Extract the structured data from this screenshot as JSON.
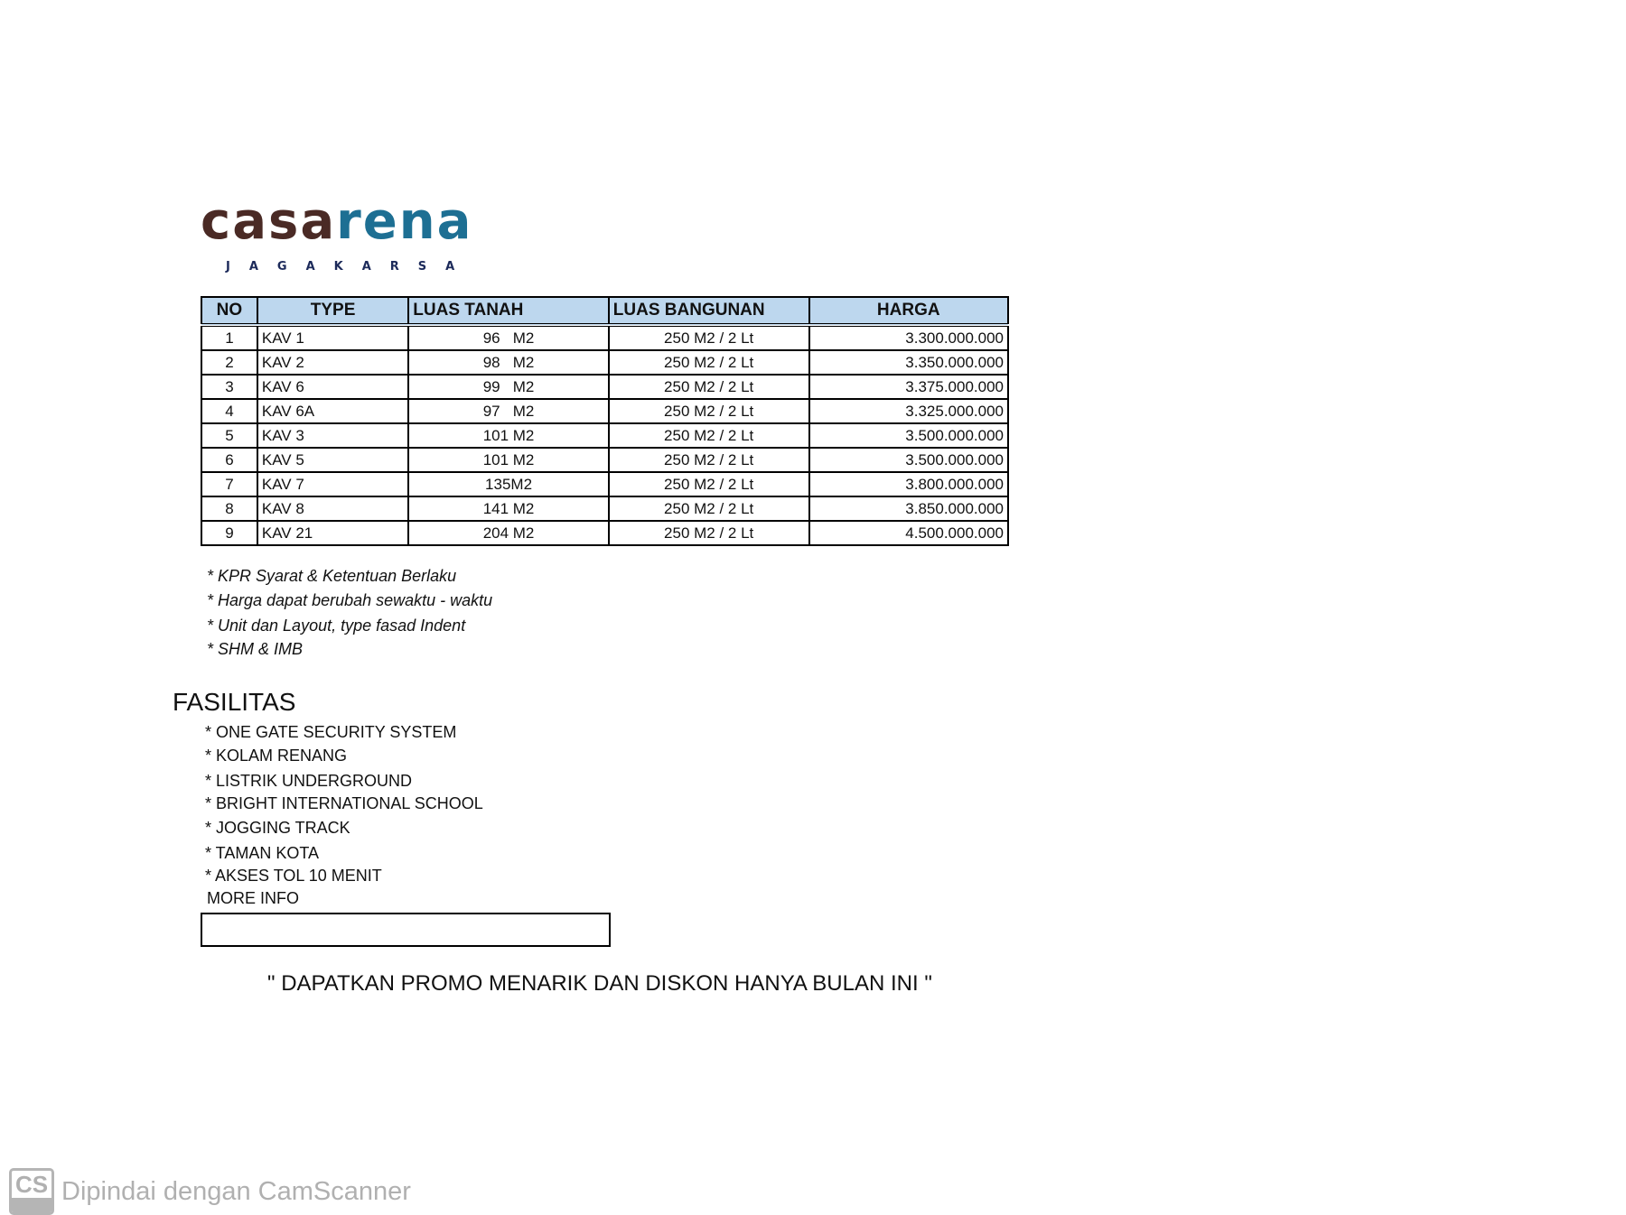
{
  "logo": {
    "brand": "casarena",
    "subtitle": "JAGAKARSA",
    "colors": {
      "dark": "#4a2a25",
      "blue": "#1d6f93"
    }
  },
  "table": {
    "headers": [
      "NO",
      "TYPE",
      "LUAS TANAH",
      "LUAS BANGUNAN",
      "HARGA"
    ],
    "header_bg": "#bdd7ee",
    "rows": [
      [
        "1",
        "KAV 1",
        "96   M2",
        "250 M2 / 2 Lt",
        "3.300.000.000"
      ],
      [
        "2",
        "KAV 2",
        "98   M2",
        "250 M2 / 2 Lt",
        "3.350.000.000"
      ],
      [
        "3",
        "KAV 6",
        "99   M2",
        "250 M2 / 2 Lt",
        "3.375.000.000"
      ],
      [
        "4",
        "KAV 6A",
        "97   M2",
        "250 M2 / 2 Lt",
        "3.325.000.000"
      ],
      [
        "5",
        "KAV 3",
        "101 M2",
        "250 M2 / 2 Lt",
        "3.500.000.000"
      ],
      [
        "6",
        "KAV 5",
        "101 M2",
        "250 M2 / 2 Lt",
        "3.500.000.000"
      ],
      [
        "7",
        "KAV 7",
        "135M2",
        "250 M2 / 2 Lt",
        "3.800.000.000"
      ],
      [
        "8",
        "KAV 8",
        "141 M2",
        "250 M2 / 2 Lt",
        "3.850.000.000"
      ],
      [
        "9",
        "KAV 21",
        "204 M2",
        "250 M2 / 2 Lt",
        "4.500.000.000"
      ]
    ]
  },
  "notes": [
    "* KPR Syarat & Ketentuan Berlaku",
    "* Harga dapat berubah sewaktu - waktu",
    "* Unit dan Layout, type fasad Indent",
    "* SHM & IMB"
  ],
  "facilities": {
    "title": "FASILITAS",
    "items": [
      "* ONE GATE SECURITY SYSTEM",
      "* KOLAM RENANG",
      "* LISTRIK UNDERGROUND",
      "* BRIGHT INTERNATIONAL SCHOOL",
      "* JOGGING TRACK",
      "* TAMAN KOTA",
      "* AKSES TOL 10 MENIT"
    ],
    "more_info": "MORE INFO",
    "more_info_value": ""
  },
  "promo": "\" DAPATKAN PROMO MENARIK DAN DISKON HANYA BULAN INI \"",
  "watermark": {
    "icon": "CS",
    "text": "Dipindai dengan CamScanner"
  }
}
